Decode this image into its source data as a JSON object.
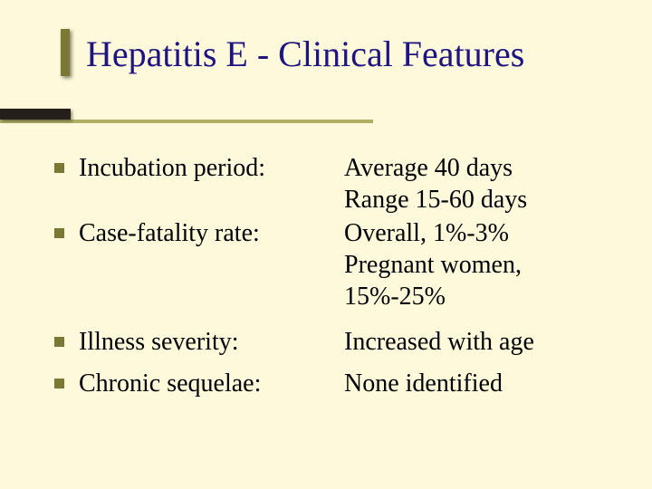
{
  "slide": {
    "title": "Hepatitis E - Clinical Features",
    "background_color": "#fdf9da",
    "title_color": "#1f1582",
    "text_color": "#000000",
    "accent_color": "#7a7832",
    "decor_dark_color": "#241f1b",
    "decor_long_color": "#b2af65",
    "title_fontsize": 40,
    "body_fontsize": 28,
    "font_family": "Times New Roman",
    "bullets": [
      {
        "label": "Incubation period:",
        "value_lines": [
          "Average 40 days",
          "Range 15-60 days"
        ]
      },
      {
        "label": "Case-fatality rate:",
        "value_lines": [
          "Overall, 1%-3%",
          "Pregnant women,",
          "15%-25%"
        ]
      },
      {
        "label": "Illness severity:",
        "value_lines": [
          "Increased with age"
        ]
      },
      {
        "label": "Chronic sequelae:",
        "value_lines": [
          "None identified"
        ]
      }
    ]
  }
}
